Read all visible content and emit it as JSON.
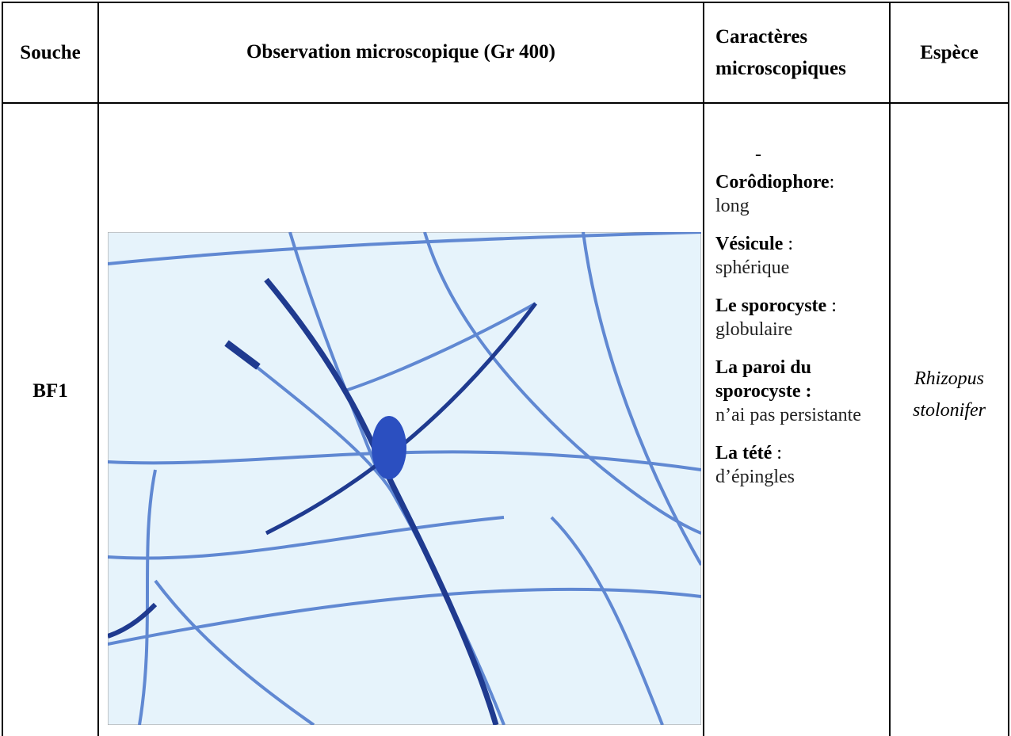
{
  "table": {
    "header": [
      "Souche",
      "Observation microscopique (Gr 400)",
      "Caractères microscopiques",
      "Espèce"
    ],
    "rows": [
      {
        "souche": "BF1",
        "dash": "-",
        "characters": [
          {
            "label": "Corôdiophore",
            "suffix": ":",
            "value": "long"
          },
          {
            "label": "Vésicule",
            "suffix": " :",
            "value": "sphérique"
          },
          {
            "label": "Le sporocyste",
            "suffix": " :",
            "value": "globulaire"
          },
          {
            "label": "La paroi du sporocyste :",
            "value": "n’ai pas persistante"
          },
          {
            "label": "La tété",
            "suffix": " :",
            "value": "d’épingles"
          }
        ],
        "species": "Rhizopus stolonifer"
      }
    ]
  }
}
